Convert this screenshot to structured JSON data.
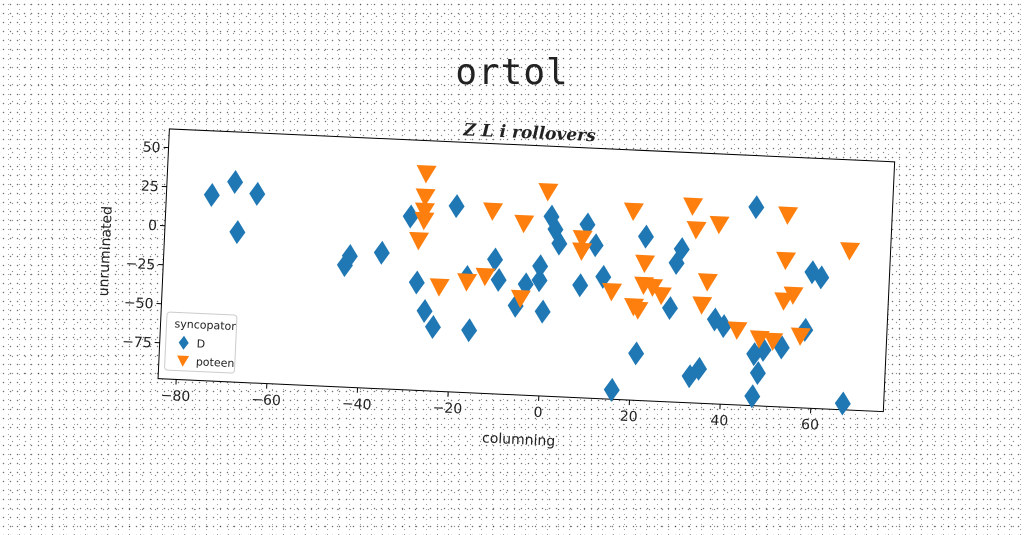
{
  "figure": {
    "suptitle": "ortol"
  },
  "chart_data": {
    "type": "scatter",
    "title": "Z L i rollovers",
    "xlabel": "columning",
    "ylabel": "unruminated",
    "xlim": [
      -84,
      76
    ],
    "ylim": [
      -98,
      62
    ],
    "xticks": [
      -80,
      -60,
      -40,
      -20,
      0,
      20,
      40,
      60
    ],
    "yticks": [
      50,
      25,
      0,
      -25,
      -50,
      -75
    ],
    "grid": false,
    "legend": {
      "title": "syncopator",
      "placement": "lower-left",
      "entries": [
        "D",
        "poteen"
      ]
    },
    "series": [
      {
        "name": "D",
        "marker": "diamond",
        "color": "#1f77b4",
        "x": [
          -74,
          -69,
          -64,
          -68,
          -44,
          -43,
          -36,
          -30,
          -28,
          -26,
          -24,
          -20,
          -16,
          -17,
          -10,
          -11,
          -6,
          -4,
          -1,
          -1,
          0,
          1,
          2,
          3,
          8,
          9,
          11,
          13,
          16,
          21,
          22,
          28,
          29,
          30,
          33,
          35,
          38,
          40,
          46,
          47,
          47,
          48,
          49,
          53,
          58,
          59,
          61,
          67
        ],
        "y": [
          21,
          30,
          23,
          -2,
          -20,
          -14,
          -11,
          13,
          -29,
          -47,
          -57,
          21,
          -58,
          -24,
          -25,
          -12,
          -41,
          -27,
          -24,
          -15,
          -44,
          17,
          9,
          0,
          -26,
          13,
          0,
          -20,
          -92,
          -68,
          7,
          -38,
          -9,
          0,
          -81,
          -76,
          -44,
          -48,
          29,
          -65,
          -92,
          -77,
          -62,
          -60,
          -48,
          -11,
          -14,
          -94
        ]
      },
      {
        "name": "poteen",
        "marker": "triangle-down",
        "color": "#ff7f0e",
        "x": [
          -27,
          -27,
          -27,
          -28,
          -27,
          -23,
          -17,
          -13,
          -12,
          -5,
          -5,
          0,
          8,
          8,
          15,
          19,
          20,
          21,
          22,
          22,
          24,
          26,
          32,
          33,
          35,
          36,
          38,
          43,
          48,
          51,
          53,
          53,
          53,
          55,
          57,
          67
        ],
        "y": [
          41,
          26,
          11,
          -2,
          17,
          -31,
          -27,
          -23,
          19,
          12,
          -36,
          33,
          4,
          -4,
          -29,
          23,
          -38,
          -40,
          -10,
          -24,
          -25,
          -30,
          28,
          13,
          -35,
          -20,
          17,
          -50,
          -55,
          -56,
          -30,
          25,
          -4,
          -26,
          -52,
          4
        ]
      }
    ]
  }
}
